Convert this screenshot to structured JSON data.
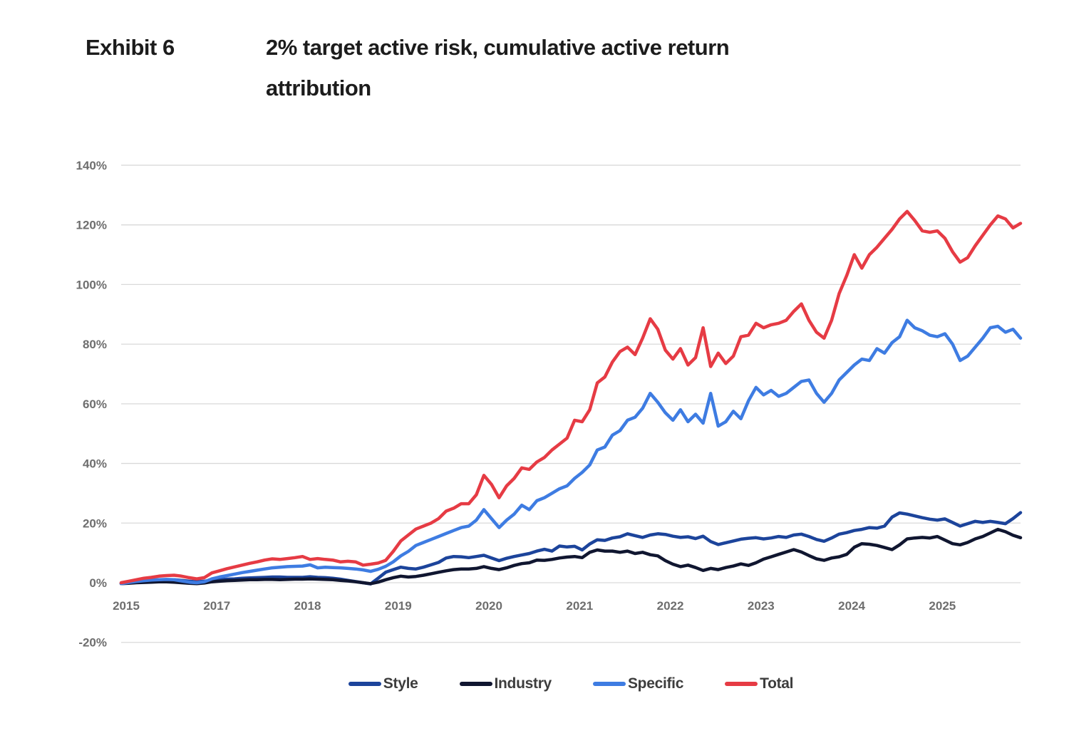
{
  "title": {
    "exhibit_label": "Exhibit 6",
    "text": "2% target active risk, cumulative active return attribution"
  },
  "chart_data": {
    "type": "line",
    "x_description": "Monthly cumulative active return, Jan 2015 - Dec 2015 then Jan 2017 - Dec 2025 (2016 not shown on axis)",
    "x_tick_labels": [
      "2015",
      "2017",
      "2018",
      "2019",
      "2020",
      "2021",
      "2022",
      "2023",
      "2024",
      "2025"
    ],
    "x_tick_point_indices": [
      0,
      12,
      24,
      36,
      48,
      60,
      72,
      84,
      96,
      108
    ],
    "y_ticks": [
      {
        "value": 140,
        "label": "140%"
      },
      {
        "value": 120,
        "label": "120%"
      },
      {
        "value": 100,
        "label": "100%"
      },
      {
        "value": 80,
        "label": "80%"
      },
      {
        "value": 60,
        "label": "60%"
      },
      {
        "value": 40,
        "label": "40%"
      },
      {
        "value": 20,
        "label": "20%"
      },
      {
        "value": 0,
        "label": "0%"
      },
      {
        "value": -20,
        "label": "-20%"
      }
    ],
    "ylim": [
      -20,
      140
    ],
    "ylabel": "",
    "xlabel": "",
    "grid": true,
    "legend_position": "bottom",
    "series": [
      {
        "name": "Style",
        "color": "#1c449b",
        "values": [
          -0.2,
          0.2,
          0.5,
          0.7,
          0.8,
          0.9,
          1.0,
          1.0,
          0.8,
          0.5,
          0.3,
          0.5,
          0.8,
          1.0,
          1.2,
          1.3,
          1.5,
          1.6,
          1.7,
          1.8,
          1.9,
          1.9,
          1.8,
          1.8,
          1.8,
          2.0,
          1.8,
          1.7,
          1.5,
          1.2,
          0.8,
          0.4,
          0.0,
          -0.4,
          1.5,
          3.5,
          4.4,
          5.2,
          4.8,
          4.6,
          5.2,
          6.0,
          6.8,
          8.3,
          8.8,
          8.7,
          8.4,
          8.8,
          9.2,
          8.3,
          7.4,
          8.2,
          8.8,
          9.3,
          9.8,
          10.6,
          11.2,
          10.6,
          12.3,
          12.0,
          12.2,
          11.0,
          13.0,
          14.4,
          14.2,
          15.0,
          15.4,
          16.4,
          15.8,
          15.2,
          16.0,
          16.4,
          16.2,
          15.6,
          15.2,
          15.4,
          14.8,
          15.6,
          13.8,
          12.8,
          13.4,
          14.0,
          14.6,
          14.9,
          15.1,
          14.7,
          15.0,
          15.5,
          15.2,
          16.0,
          16.3,
          15.5,
          14.5,
          13.9,
          15.0,
          16.3,
          16.8,
          17.5,
          17.9,
          18.5,
          18.3,
          19.0,
          22.0,
          23.4,
          23.0,
          22.4,
          21.8,
          21.3,
          21.0,
          21.4,
          20.2,
          19.0,
          19.8,
          20.6,
          20.2,
          20.6,
          20.2,
          19.8,
          21.5,
          23.5
        ]
      },
      {
        "name": "Industry",
        "color": "#101630",
        "values": [
          -0.3,
          -0.2,
          0.0,
          0.1,
          0.2,
          0.3,
          0.3,
          0.2,
          0.0,
          -0.2,
          -0.3,
          -0.1,
          0.3,
          0.5,
          0.7,
          0.8,
          0.9,
          1.0,
          1.0,
          1.1,
          1.1,
          1.0,
          1.1,
          1.2,
          1.2,
          1.3,
          1.2,
          1.1,
          1.0,
          0.8,
          0.6,
          0.3,
          0.0,
          -0.3,
          0.2,
          1.0,
          1.7,
          2.2,
          1.9,
          2.1,
          2.5,
          3.0,
          3.5,
          4.0,
          4.4,
          4.6,
          4.6,
          4.8,
          5.4,
          4.8,
          4.4,
          5.0,
          5.8,
          6.4,
          6.7,
          7.6,
          7.5,
          7.8,
          8.3,
          8.6,
          8.8,
          8.4,
          10.2,
          11.0,
          10.6,
          10.6,
          10.2,
          10.6,
          9.8,
          10.2,
          9.4,
          9.0,
          7.4,
          6.2,
          5.4,
          5.9,
          5.1,
          4.1,
          4.8,
          4.4,
          5.1,
          5.6,
          6.3,
          5.8,
          6.7,
          7.9,
          8.7,
          9.5,
          10.3,
          11.1,
          10.3,
          9.1,
          8.0,
          7.5,
          8.3,
          8.7,
          9.5,
          11.9,
          13.1,
          12.9,
          12.5,
          11.8,
          11.1,
          12.7,
          14.7,
          15.0,
          15.2,
          15.0,
          15.5,
          14.3,
          13.1,
          12.7,
          13.5,
          14.7,
          15.5,
          16.7,
          17.9,
          17.1,
          15.9,
          15.1
        ]
      },
      {
        "name": "Specific",
        "color": "#3e7ce2",
        "values": [
          -0.3,
          0.1,
          0.4,
          0.7,
          0.9,
          1.0,
          1.1,
          1.0,
          0.6,
          0.2,
          0.0,
          0.3,
          1.3,
          1.9,
          2.4,
          2.9,
          3.4,
          3.8,
          4.2,
          4.6,
          5.0,
          5.2,
          5.4,
          5.5,
          5.6,
          6.0,
          5.0,
          5.2,
          5.1,
          5.0,
          4.8,
          4.6,
          4.3,
          3.8,
          4.5,
          5.5,
          7.0,
          9.0,
          10.5,
          12.5,
          13.5,
          14.5,
          15.5,
          16.5,
          17.5,
          18.5,
          19.0,
          21.0,
          24.5,
          21.5,
          18.5,
          21.0,
          23.0,
          26.0,
          24.5,
          27.5,
          28.5,
          30.0,
          31.5,
          32.5,
          35.0,
          37.0,
          39.5,
          44.5,
          45.5,
          49.5,
          51.0,
          54.5,
          55.5,
          58.5,
          63.5,
          60.5,
          57.0,
          54.5,
          58.0,
          54.0,
          56.5,
          53.5,
          63.5,
          52.5,
          54.0,
          57.5,
          55.0,
          61.0,
          65.5,
          63.0,
          64.5,
          62.5,
          63.5,
          65.5,
          67.5,
          68.0,
          63.5,
          60.5,
          63.5,
          68.0,
          70.5,
          73.0,
          75.0,
          74.5,
          78.5,
          77.0,
          80.5,
          82.5,
          88.0,
          85.5,
          84.5,
          83.0,
          82.5,
          83.5,
          80.0,
          74.5,
          76.0,
          79.0,
          82.0,
          85.5,
          86.0,
          84.0,
          85.0,
          82.0
        ]
      },
      {
        "name": "Total",
        "color": "#e63b44",
        "values": [
          0.0,
          0.5,
          1.0,
          1.5,
          1.8,
          2.2,
          2.4,
          2.5,
          2.2,
          1.7,
          1.3,
          1.7,
          3.3,
          4.0,
          4.7,
          5.3,
          5.9,
          6.5,
          7.0,
          7.6,
          8.0,
          7.8,
          8.1,
          8.4,
          8.8,
          7.8,
          8.1,
          7.8,
          7.6,
          7.0,
          7.2,
          7.0,
          5.9,
          6.2,
          6.6,
          7.5,
          10.5,
          14.0,
          16.0,
          18.0,
          19.0,
          20.0,
          21.5,
          24.0,
          25.0,
          26.5,
          26.5,
          29.5,
          36.0,
          33.0,
          28.5,
          32.5,
          35.0,
          38.5,
          38.0,
          40.5,
          42.0,
          44.5,
          46.5,
          48.5,
          54.5,
          54.0,
          58.0,
          67.0,
          69.0,
          74.0,
          77.5,
          79.0,
          76.5,
          82.0,
          88.5,
          85.0,
          78.0,
          75.0,
          78.5,
          73.0,
          75.5,
          85.5,
          72.5,
          77.0,
          73.5,
          76.0,
          82.5,
          83.0,
          87.0,
          85.5,
          86.5,
          87.0,
          88.0,
          91.0,
          93.5,
          88.0,
          84.0,
          82.0,
          88.0,
          97.0,
          103.0,
          110.0,
          105.5,
          110.0,
          112.5,
          115.5,
          118.5,
          122.0,
          124.5,
          121.5,
          118.0,
          117.5,
          118.0,
          115.5,
          111.0,
          107.5,
          109.0,
          113.0,
          116.5,
          120.0,
          123.0,
          122.0,
          119.0,
          120.5
        ]
      }
    ]
  },
  "style": {
    "grid_color": "#d9d9d9",
    "axis_label_color": "#6e6e6e",
    "legend_text_color": "#3d3d3d",
    "title_color": "#1c1c1c",
    "background": "#ffffff",
    "line_width": 4.5
  }
}
